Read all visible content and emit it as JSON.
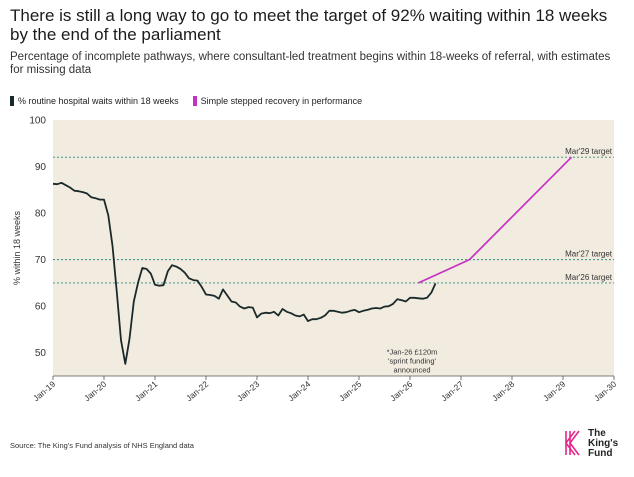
{
  "title": "There is still a long way to go to meet the target of 92% waiting within 18 weeks by the end of the parliament",
  "subtitle": "Percentage of incomplete pathways, where consultant-led treatment begins within 18-weeks of referral, with estimates for missing data",
  "source": "Source: The King's Fund analysis of NHS England data",
  "logo_text": [
    "The",
    "King's",
    "Fund"
  ],
  "colors": {
    "plot_bg": "#f2ebe0",
    "actual": "#1a2a2a",
    "recovery": "#c531c2",
    "target": "#2e8c80",
    "grid": "#ddd4c6"
  },
  "chart_data": {
    "type": "line",
    "ylabel": "% within 18 weeks",
    "xlabel": "",
    "ylim": [
      45,
      100
    ],
    "xlim": [
      "2019-01",
      "2030-01"
    ],
    "yticks": [
      50,
      60,
      70,
      80,
      90,
      100
    ],
    "xticks": [
      "Jan-19",
      "Jan-20",
      "Jan-21",
      "Jan-22",
      "Jan-23",
      "Jan-24",
      "Jan-25",
      "Jan-26",
      "Jan-27",
      "Jan-28",
      "Jan-29",
      "Jan-30"
    ],
    "legend_position": "top-left",
    "grid": false,
    "series": [
      {
        "name": "% routine hospital waits within 18 weeks",
        "color": "#1a2a2a",
        "points": [
          [
            "2019-01",
            86.3
          ],
          [
            "2019-02",
            86.2
          ],
          [
            "2019-03",
            86.5
          ],
          [
            "2019-04",
            86.0
          ],
          [
            "2019-05",
            85.5
          ],
          [
            "2019-06",
            84.8
          ],
          [
            "2019-07",
            84.7
          ],
          [
            "2019-08",
            84.5
          ],
          [
            "2019-09",
            84.2
          ],
          [
            "2019-10",
            83.4
          ],
          [
            "2019-11",
            83.2
          ],
          [
            "2019-12",
            82.9
          ],
          [
            "2020-01",
            82.9
          ],
          [
            "2020-02",
            79.5
          ],
          [
            "2020-03",
            73.0
          ],
          [
            "2020-04",
            63.0
          ],
          [
            "2020-05",
            52.7
          ],
          [
            "2020-06",
            47.6
          ],
          [
            "2020-07",
            53.0
          ],
          [
            "2020-08",
            61.0
          ],
          [
            "2020-09",
            65.0
          ],
          [
            "2020-10",
            68.2
          ],
          [
            "2020-11",
            68.0
          ],
          [
            "2020-12",
            67.0
          ],
          [
            "2021-01",
            64.6
          ],
          [
            "2021-02",
            64.4
          ],
          [
            "2021-03",
            64.5
          ],
          [
            "2021-04",
            67.5
          ],
          [
            "2021-05",
            68.8
          ],
          [
            "2021-06",
            68.5
          ],
          [
            "2021-07",
            68.0
          ],
          [
            "2021-08",
            67.2
          ],
          [
            "2021-09",
            66.0
          ],
          [
            "2021-10",
            65.6
          ],
          [
            "2021-11",
            65.5
          ],
          [
            "2021-12",
            64.1
          ],
          [
            "2022-01",
            62.5
          ],
          [
            "2022-02",
            62.4
          ],
          [
            "2022-03",
            62.2
          ],
          [
            "2022-04",
            61.6
          ],
          [
            "2022-05",
            63.6
          ],
          [
            "2022-06",
            62.3
          ],
          [
            "2022-07",
            61.0
          ],
          [
            "2022-08",
            60.8
          ],
          [
            "2022-09",
            59.9
          ],
          [
            "2022-10",
            59.5
          ],
          [
            "2022-11",
            59.8
          ],
          [
            "2022-12",
            59.7
          ],
          [
            "2023-01",
            57.6
          ],
          [
            "2023-02",
            58.4
          ],
          [
            "2023-03",
            58.6
          ],
          [
            "2023-04",
            58.5
          ],
          [
            "2023-05",
            58.8
          ],
          [
            "2023-06",
            58.0
          ],
          [
            "2023-07",
            59.4
          ],
          [
            "2023-08",
            58.8
          ],
          [
            "2023-09",
            58.5
          ],
          [
            "2023-10",
            58.0
          ],
          [
            "2023-11",
            57.8
          ],
          [
            "2023-12",
            58.2
          ],
          [
            "2024-01",
            56.8
          ],
          [
            "2024-02",
            57.2
          ],
          [
            "2024-03",
            57.2
          ],
          [
            "2024-04",
            57.5
          ],
          [
            "2024-05",
            58.0
          ],
          [
            "2024-06",
            59.0
          ],
          [
            "2024-07",
            59.0
          ],
          [
            "2024-08",
            58.8
          ],
          [
            "2024-09",
            58.6
          ],
          [
            "2024-10",
            58.7
          ],
          [
            "2024-11",
            59.0
          ],
          [
            "2024-12",
            59.2
          ],
          [
            "2025-01",
            58.7
          ],
          [
            "2025-02",
            59.0
          ],
          [
            "2025-03",
            59.2
          ],
          [
            "2025-04",
            59.5
          ],
          [
            "2025-05",
            59.6
          ],
          [
            "2025-06",
            59.5
          ],
          [
            "2025-07",
            59.9
          ],
          [
            "2025-08",
            60.0
          ],
          [
            "2025-09",
            60.5
          ],
          [
            "2025-10",
            61.5
          ],
          [
            "2025-11",
            61.3
          ],
          [
            "2025-12",
            61.0
          ],
          [
            "2026-01",
            61.8
          ],
          [
            "2026-02",
            61.8
          ],
          [
            "2026-03",
            61.7
          ],
          [
            "2026-04",
            61.6
          ],
          [
            "2026-05",
            61.8
          ],
          [
            "2026-06",
            62.9
          ],
          [
            "2026-07",
            64.9
          ]
        ]
      },
      {
        "name": "Simple stepped recovery in performance",
        "color": "#c531c2",
        "points": [
          [
            "2026-03",
            65.0
          ],
          [
            "2027-03",
            70.0
          ],
          [
            "2029-03",
            92.0
          ]
        ]
      }
    ],
    "reference_lines": [
      {
        "y": 92,
        "label": "Mar'29 target"
      },
      {
        "y": 70,
        "label": "Mar'27 target"
      },
      {
        "y": 65,
        "label": "Mar'26 target"
      }
    ],
    "annotation": {
      "x": "2026-01",
      "y": 49,
      "lines": [
        "*Jan-26 £120m",
        "'sprint funding'",
        "announced"
      ]
    }
  }
}
